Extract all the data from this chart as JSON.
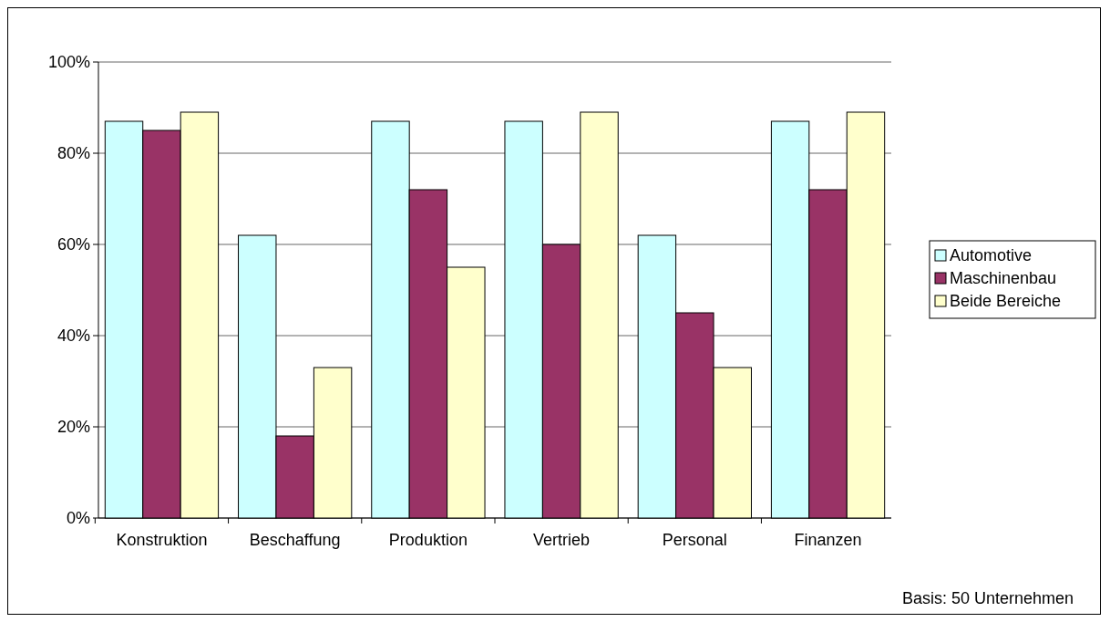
{
  "chart_data": {
    "type": "bar",
    "categories": [
      "Konstruktion",
      "Beschaffung",
      "Produktion",
      "Vertrieb",
      "Personal",
      "Finanzen"
    ],
    "series": [
      {
        "name": "Automotive",
        "color": "#ccffff",
        "values": [
          87,
          62,
          87,
          87,
          62,
          87
        ]
      },
      {
        "name": "Maschinenbau",
        "color": "#993366",
        "values": [
          85,
          18,
          72,
          60,
          45,
          72
        ]
      },
      {
        "name": "Beide Bereiche",
        "color": "#ffffcc",
        "values": [
          89,
          33,
          55,
          89,
          33,
          89
        ]
      }
    ],
    "ylim": [
      0,
      100
    ],
    "yticks": [
      {
        "value": 0,
        "label": "0%"
      },
      {
        "value": 20,
        "label": "20%"
      },
      {
        "value": 40,
        "label": "40%"
      },
      {
        "value": 60,
        "label": "60%"
      },
      {
        "value": 80,
        "label": "80%"
      },
      {
        "value": 100,
        "label": "100%"
      }
    ],
    "grid": "y",
    "legend": "right",
    "annotations": [
      "Basis: 50 Unternehmen"
    ]
  }
}
